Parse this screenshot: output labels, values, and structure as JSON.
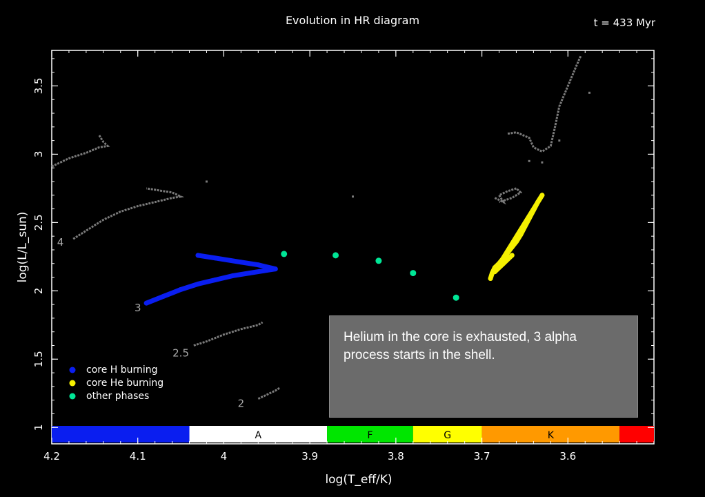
{
  "header": {
    "title": "Evolution in HR diagram",
    "time_label": "t = 433 Myr"
  },
  "info_box": {
    "text": "Helium in the core is exhausted, 3 alpha process starts in the shell."
  },
  "colors": {
    "background": "#000000",
    "core_h": "#0a1ef0",
    "core_he": "#f5f000",
    "other": "#00e696",
    "track": "#7a7a7a",
    "info_box": "#6b6b6b"
  },
  "chart_data": {
    "type": "scatter",
    "title": "Evolution in HR diagram",
    "xlabel": "log(T_eff/K)",
    "ylabel": "log(L/L_sun)",
    "xlim": [
      4.2,
      3.5
    ],
    "ylim": [
      0.88,
      3.76
    ],
    "x_ticks": [
      4.2,
      4.1,
      4.0,
      3.9,
      3.8,
      3.7,
      3.6
    ],
    "x_tick_labels": [
      "4.2",
      "4.1",
      "4",
      "3.9",
      "3.8",
      "3.7",
      "3.6"
    ],
    "y_ticks": [
      1,
      1.5,
      2,
      2.5,
      3,
      3.5
    ],
    "y_tick_labels": [
      "1",
      "1.5",
      "2",
      "2.5",
      "3",
      "3.5"
    ],
    "legend": {
      "position": "bottom-left",
      "entries": [
        {
          "label": "core H burning",
          "color": "#0a1ef0"
        },
        {
          "label": "core He burning",
          "color": "#f5f000"
        },
        {
          "label": "other phases",
          "color": "#00e696"
        }
      ]
    },
    "spectral_classes": [
      {
        "label": "",
        "from": 4.2,
        "to": 4.04,
        "color": "#0a1ef0"
      },
      {
        "label": "A",
        "from": 4.04,
        "to": 3.88,
        "color": "#ffffff"
      },
      {
        "label": "F",
        "from": 3.88,
        "to": 3.78,
        "color": "#00e600"
      },
      {
        "label": "G",
        "from": 3.78,
        "to": 3.7,
        "color": "#ffff00"
      },
      {
        "label": "K",
        "from": 3.7,
        "to": 3.54,
        "color": "#ff9900"
      },
      {
        "label": "",
        "from": 3.54,
        "to": 3.5,
        "color": "#ff0000"
      }
    ],
    "mass_labels": [
      {
        "text": "4",
        "x": 4.19,
        "y": 2.33
      },
      {
        "text": "3",
        "x": 4.1,
        "y": 1.85
      },
      {
        "text": "2.5",
        "x": 4.05,
        "y": 1.52
      },
      {
        "text": "2",
        "x": 3.98,
        "y": 1.15
      }
    ],
    "tracks": [
      {
        "name": "4",
        "points": [
          [
            4.2,
            2.91
          ],
          [
            4.18,
            2.97
          ],
          [
            4.16,
            3.01
          ],
          [
            4.145,
            3.05
          ],
          [
            4.135,
            3.06
          ],
          [
            4.14,
            3.09
          ],
          [
            4.145,
            3.14
          ]
        ]
      },
      {
        "name": "3.5",
        "points": [
          [
            4.175,
            2.38
          ],
          [
            4.16,
            2.44
          ],
          [
            4.14,
            2.52
          ],
          [
            4.12,
            2.58
          ],
          [
            4.1,
            2.62
          ],
          [
            4.08,
            2.65
          ],
          [
            4.06,
            2.68
          ],
          [
            4.05,
            2.69
          ],
          [
            4.06,
            2.72
          ],
          [
            4.07,
            2.73
          ],
          [
            4.09,
            2.75
          ]
        ]
      },
      {
        "name": "2.5",
        "points": [
          [
            4.035,
            1.6
          ],
          [
            4.02,
            1.63
          ],
          [
            4.0,
            1.68
          ],
          [
            3.98,
            1.72
          ],
          [
            3.96,
            1.75
          ],
          [
            3.955,
            1.77
          ]
        ]
      },
      {
        "name": "2",
        "points": [
          [
            3.96,
            1.21
          ],
          [
            3.95,
            1.24
          ],
          [
            3.94,
            1.27
          ],
          [
            3.935,
            1.29
          ]
        ]
      },
      {
        "name": "giant-branch",
        "points": [
          [
            3.685,
            2.68
          ],
          [
            3.675,
            2.65
          ],
          [
            3.68,
            2.7
          ],
          [
            3.67,
            2.73
          ],
          [
            3.66,
            2.75
          ],
          [
            3.655,
            2.72
          ],
          [
            3.665,
            2.68
          ],
          [
            3.68,
            2.65
          ]
        ]
      },
      {
        "name": "giant-upper",
        "points": [
          [
            3.67,
            3.15
          ],
          [
            3.66,
            3.16
          ],
          [
            3.645,
            3.12
          ],
          [
            3.64,
            3.05
          ],
          [
            3.63,
            3.02
          ],
          [
            3.62,
            3.06
          ],
          [
            3.615,
            3.2
          ],
          [
            3.61,
            3.35
          ],
          [
            3.6,
            3.5
          ],
          [
            3.59,
            3.65
          ],
          [
            3.585,
            3.72
          ]
        ]
      }
    ],
    "scatter_gray": [
      [
        4.02,
        2.8
      ],
      [
        3.85,
        2.69
      ],
      [
        3.575,
        3.45
      ],
      [
        3.645,
        2.95
      ],
      [
        3.63,
        2.94
      ],
      [
        3.61,
        3.1
      ]
    ],
    "series": [
      {
        "name": "core H burning",
        "color": "#0a1ef0",
        "points": [
          [
            4.09,
            1.91
          ],
          [
            4.07,
            1.96
          ],
          [
            4.05,
            2.01
          ],
          [
            4.03,
            2.05
          ],
          [
            4.01,
            2.08
          ],
          [
            3.99,
            2.11
          ],
          [
            3.97,
            2.13
          ],
          [
            3.95,
            2.15
          ],
          [
            3.94,
            2.16
          ],
          [
            3.96,
            2.19
          ],
          [
            3.98,
            2.21
          ],
          [
            4.01,
            2.24
          ],
          [
            4.03,
            2.26
          ]
        ]
      },
      {
        "name": "core He burning",
        "color": "#f5f000",
        "points": [
          [
            3.69,
            2.09
          ],
          [
            3.688,
            2.13
          ],
          [
            3.685,
            2.17
          ],
          [
            3.68,
            2.2
          ],
          [
            3.675,
            2.24
          ],
          [
            3.67,
            2.28
          ],
          [
            3.665,
            2.32
          ],
          [
            3.66,
            2.36
          ],
          [
            3.655,
            2.41
          ],
          [
            3.65,
            2.47
          ],
          [
            3.645,
            2.53
          ],
          [
            3.64,
            2.59
          ],
          [
            3.635,
            2.65
          ],
          [
            3.63,
            2.7
          ],
          [
            3.685,
            2.14
          ],
          [
            3.675,
            2.2
          ],
          [
            3.665,
            2.26
          ]
        ]
      },
      {
        "name": "other phases",
        "color": "#00e696",
        "points": [
          [
            3.93,
            2.27
          ],
          [
            3.87,
            2.26
          ],
          [
            3.82,
            2.22
          ],
          [
            3.78,
            2.13
          ],
          [
            3.73,
            1.95
          ]
        ]
      }
    ]
  }
}
